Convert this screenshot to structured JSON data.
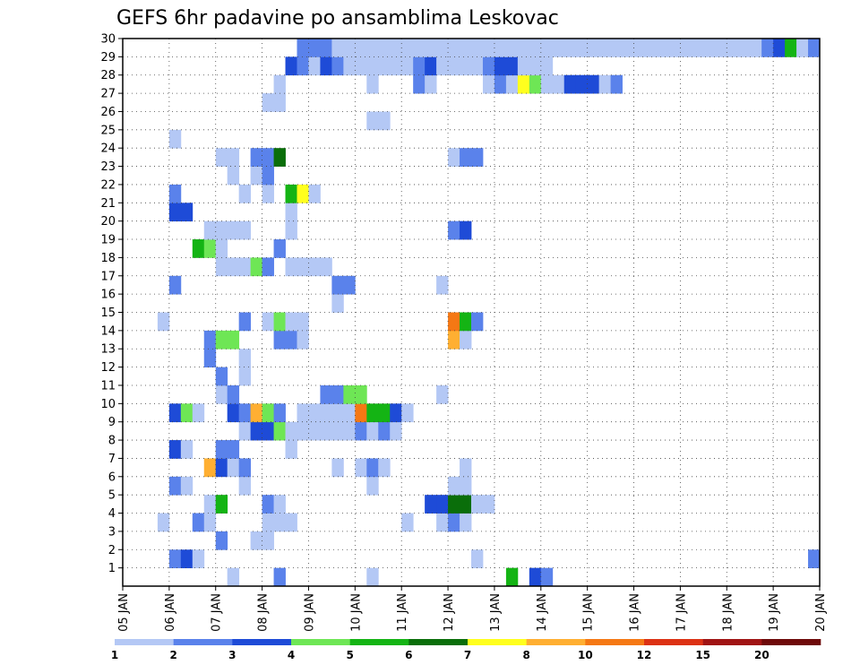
{
  "chart_data": {
    "type": "heatmap",
    "title": "GEFS 6hr padavine po ansamblima Leskovac",
    "y_ticks": [
      "1",
      "2",
      "3",
      "4",
      "5",
      "6",
      "7",
      "8",
      "9",
      "10",
      "11",
      "12",
      "13",
      "14",
      "15",
      "16",
      "17",
      "18",
      "19",
      "20",
      "21",
      "22",
      "23",
      "24",
      "25",
      "26",
      "27",
      "28",
      "29",
      "30"
    ],
    "x_ticks": [
      "05 JAN",
      "06 JAN",
      "07 JAN",
      "08 JAN",
      "09 JAN",
      "10 JAN",
      "11 JAN",
      "12 JAN",
      "13 JAN",
      "14 JAN",
      "15 JAN",
      "16 JAN",
      "17 JAN",
      "18 JAN",
      "19 JAN",
      "20 JAN"
    ],
    "steps_per_day": 4,
    "y_range": [
      0,
      30
    ],
    "x_range_steps": [
      0,
      60
    ],
    "grid": true,
    "colorbar": {
      "labels": [
        "1",
        "2",
        "3",
        "4",
        "5",
        "6",
        "7",
        "8",
        "10",
        "12",
        "15",
        "20"
      ],
      "colors": [
        "#b4c8f5",
        "#5a82eb",
        "#1e4bd7",
        "#6ee655",
        "#14b414",
        "#0a6e0a",
        "#ffff1e",
        "#ffaf32",
        "#f57814",
        "#dc3214",
        "#a01414",
        "#6e0a0a"
      ]
    },
    "cells": [
      [
        0,
        9,
        1
      ],
      [
        0,
        13,
        2
      ],
      [
        0,
        21,
        1
      ],
      [
        0,
        33,
        5
      ],
      [
        0,
        35,
        3
      ],
      [
        0,
        36,
        2
      ],
      [
        1,
        4,
        2
      ],
      [
        1,
        5,
        3
      ],
      [
        1,
        6,
        1
      ],
      [
        1,
        30,
        1
      ],
      [
        1,
        59,
        2
      ],
      [
        2,
        8,
        2
      ],
      [
        2,
        11,
        1
      ],
      [
        2,
        12,
        1
      ],
      [
        3,
        3,
        1
      ],
      [
        3,
        6,
        2
      ],
      [
        3,
        7,
        1
      ],
      [
        3,
        12,
        1
      ],
      [
        3,
        13,
        1
      ],
      [
        3,
        14,
        1
      ],
      [
        3,
        24,
        1
      ],
      [
        3,
        27,
        1
      ],
      [
        3,
        28,
        2
      ],
      [
        3,
        29,
        1
      ],
      [
        4,
        7,
        1
      ],
      [
        4,
        8,
        5
      ],
      [
        4,
        12,
        2
      ],
      [
        4,
        13,
        1
      ],
      [
        4,
        26,
        3
      ],
      [
        4,
        27,
        3
      ],
      [
        4,
        28,
        6
      ],
      [
        4,
        29,
        6
      ],
      [
        4,
        30,
        1
      ],
      [
        4,
        31,
        1
      ],
      [
        5,
        4,
        2
      ],
      [
        5,
        5,
        1
      ],
      [
        5,
        10,
        1
      ],
      [
        5,
        21,
        1
      ],
      [
        5,
        28,
        1
      ],
      [
        5,
        29,
        1
      ],
      [
        6,
        7,
        8
      ],
      [
        6,
        8,
        3
      ],
      [
        6,
        9,
        1
      ],
      [
        6,
        10,
        2
      ],
      [
        6,
        18,
        1
      ],
      [
        6,
        20,
        1
      ],
      [
        6,
        21,
        2
      ],
      [
        6,
        22,
        1
      ],
      [
        6,
        29,
        1
      ],
      [
        7,
        4,
        3
      ],
      [
        7,
        5,
        1
      ],
      [
        7,
        8,
        2
      ],
      [
        7,
        9,
        2
      ],
      [
        7,
        14,
        1
      ],
      [
        8,
        10,
        1
      ],
      [
        8,
        11,
        3
      ],
      [
        8,
        12,
        3
      ],
      [
        8,
        13,
        4
      ],
      [
        8,
        14,
        1
      ],
      [
        8,
        15,
        1
      ],
      [
        8,
        16,
        1
      ],
      [
        8,
        17,
        1
      ],
      [
        8,
        18,
        1
      ],
      [
        8,
        19,
        1
      ],
      [
        8,
        20,
        2
      ],
      [
        8,
        21,
        1
      ],
      [
        8,
        22,
        2
      ],
      [
        8,
        23,
        1
      ],
      [
        9,
        4,
        3
      ],
      [
        9,
        5,
        4
      ],
      [
        9,
        6,
        1
      ],
      [
        9,
        9,
        3
      ],
      [
        9,
        10,
        2
      ],
      [
        9,
        11,
        8
      ],
      [
        9,
        12,
        4
      ],
      [
        9,
        13,
        2
      ],
      [
        9,
        15,
        1
      ],
      [
        9,
        16,
        1
      ],
      [
        9,
        17,
        1
      ],
      [
        9,
        18,
        1
      ],
      [
        9,
        19,
        1
      ],
      [
        9,
        20,
        9
      ],
      [
        9,
        21,
        5
      ],
      [
        9,
        22,
        5
      ],
      [
        9,
        23,
        3
      ],
      [
        9,
        24,
        1
      ],
      [
        10,
        8,
        1
      ],
      [
        10,
        9,
        2
      ],
      [
        10,
        17,
        2
      ],
      [
        10,
        18,
        2
      ],
      [
        10,
        19,
        4
      ],
      [
        10,
        20,
        4
      ],
      [
        10,
        27,
        1
      ],
      [
        11,
        8,
        2
      ],
      [
        11,
        10,
        1
      ],
      [
        12,
        7,
        2
      ],
      [
        12,
        10,
        1
      ],
      [
        13,
        7,
        2
      ],
      [
        13,
        8,
        4
      ],
      [
        13,
        9,
        4
      ],
      [
        13,
        13,
        2
      ],
      [
        13,
        14,
        2
      ],
      [
        13,
        15,
        1
      ],
      [
        13,
        28,
        8
      ],
      [
        13,
        29,
        1
      ],
      [
        14,
        3,
        1
      ],
      [
        14,
        10,
        2
      ],
      [
        14,
        12,
        1
      ],
      [
        14,
        13,
        4
      ],
      [
        14,
        14,
        1
      ],
      [
        14,
        15,
        1
      ],
      [
        14,
        28,
        9
      ],
      [
        14,
        29,
        5
      ],
      [
        14,
        30,
        2
      ],
      [
        15,
        18,
        1
      ],
      [
        16,
        4,
        2
      ],
      [
        16,
        18,
        2
      ],
      [
        16,
        19,
        2
      ],
      [
        16,
        27,
        1
      ],
      [
        17,
        8,
        1
      ],
      [
        17,
        9,
        1
      ],
      [
        17,
        10,
        1
      ],
      [
        17,
        11,
        4
      ],
      [
        17,
        12,
        2
      ],
      [
        17,
        14,
        1
      ],
      [
        17,
        15,
        1
      ],
      [
        17,
        16,
        1
      ],
      [
        17,
        17,
        1
      ],
      [
        18,
        6,
        5
      ],
      [
        18,
        7,
        4
      ],
      [
        18,
        8,
        1
      ],
      [
        18,
        13,
        2
      ],
      [
        19,
        7,
        1
      ],
      [
        19,
        8,
        1
      ],
      [
        19,
        9,
        1
      ],
      [
        19,
        10,
        1
      ],
      [
        19,
        14,
        1
      ],
      [
        19,
        28,
        2
      ],
      [
        19,
        29,
        3
      ],
      [
        20,
        4,
        3
      ],
      [
        20,
        5,
        3
      ],
      [
        20,
        14,
        1
      ],
      [
        21,
        4,
        2
      ],
      [
        21,
        10,
        1
      ],
      [
        21,
        12,
        1
      ],
      [
        21,
        14,
        5
      ],
      [
        21,
        15,
        7
      ],
      [
        21,
        16,
        1
      ],
      [
        22,
        9,
        1
      ],
      [
        22,
        11,
        1
      ],
      [
        22,
        12,
        2
      ],
      [
        23,
        8,
        1
      ],
      [
        23,
        9,
        1
      ],
      [
        23,
        11,
        2
      ],
      [
        23,
        12,
        2
      ],
      [
        23,
        13,
        6
      ],
      [
        23,
        28,
        1
      ],
      [
        23,
        29,
        2
      ],
      [
        23,
        30,
        2
      ],
      [
        24,
        4,
        1
      ],
      [
        25,
        21,
        1
      ],
      [
        25,
        22,
        1
      ],
      [
        26,
        12,
        1
      ],
      [
        26,
        13,
        1
      ],
      [
        27,
        13,
        1
      ],
      [
        27,
        21,
        1
      ],
      [
        27,
        25,
        2
      ],
      [
        27,
        26,
        1
      ],
      [
        27,
        31,
        1
      ],
      [
        27,
        32,
        2
      ],
      [
        27,
        33,
        1
      ],
      [
        27,
        34,
        7
      ],
      [
        27,
        35,
        4
      ],
      [
        27,
        36,
        1
      ],
      [
        27,
        37,
        1
      ],
      [
        27,
        38,
        3
      ],
      [
        27,
        39,
        3
      ],
      [
        27,
        40,
        3
      ],
      [
        27,
        41,
        1
      ],
      [
        27,
        42,
        2
      ],
      [
        28,
        14,
        3
      ],
      [
        28,
        15,
        2
      ],
      [
        28,
        16,
        1
      ],
      [
        28,
        17,
        3
      ],
      [
        28,
        18,
        2
      ],
      [
        28,
        19,
        1
      ],
      [
        28,
        20,
        1
      ],
      [
        28,
        21,
        1
      ],
      [
        28,
        22,
        1
      ],
      [
        28,
        23,
        1
      ],
      [
        28,
        24,
        1
      ],
      [
        28,
        25,
        2
      ],
      [
        28,
        26,
        3
      ],
      [
        28,
        27,
        1
      ],
      [
        28,
        28,
        1
      ],
      [
        28,
        29,
        1
      ],
      [
        28,
        30,
        1
      ],
      [
        28,
        31,
        2
      ],
      [
        28,
        32,
        3
      ],
      [
        28,
        33,
        3
      ],
      [
        28,
        34,
        1
      ],
      [
        28,
        35,
        1
      ],
      [
        28,
        36,
        1
      ],
      [
        29,
        15,
        2
      ],
      [
        29,
        16,
        2
      ],
      [
        29,
        17,
        2
      ],
      [
        29,
        18,
        1
      ],
      [
        29,
        19,
        1
      ],
      [
        29,
        20,
        1
      ],
      [
        29,
        21,
        1
      ],
      [
        29,
        22,
        1
      ],
      [
        29,
        23,
        1
      ],
      [
        29,
        24,
        1
      ],
      [
        29,
        25,
        1
      ],
      [
        29,
        26,
        1
      ],
      [
        29,
        27,
        1
      ],
      [
        29,
        28,
        1
      ],
      [
        29,
        29,
        1
      ],
      [
        29,
        30,
        1
      ],
      [
        29,
        31,
        1
      ],
      [
        29,
        32,
        1
      ],
      [
        29,
        33,
        1
      ],
      [
        29,
        34,
        1
      ],
      [
        29,
        35,
        1
      ],
      [
        29,
        36,
        1
      ],
      [
        29,
        37,
        1
      ],
      [
        29,
        38,
        1
      ],
      [
        29,
        39,
        1
      ],
      [
        29,
        40,
        1
      ],
      [
        29,
        41,
        1
      ],
      [
        29,
        42,
        1
      ],
      [
        29,
        43,
        1
      ],
      [
        29,
        44,
        1
      ],
      [
        29,
        45,
        1
      ],
      [
        29,
        46,
        1
      ],
      [
        29,
        47,
        1
      ],
      [
        29,
        48,
        1
      ],
      [
        29,
        49,
        1
      ],
      [
        29,
        50,
        1
      ],
      [
        29,
        51,
        1
      ],
      [
        29,
        52,
        1
      ],
      [
        29,
        53,
        1
      ],
      [
        29,
        54,
        1
      ],
      [
        29,
        55,
        2
      ],
      [
        29,
        56,
        3
      ],
      [
        29,
        57,
        5
      ],
      [
        29,
        58,
        1
      ],
      [
        29,
        59,
        2
      ]
    ]
  }
}
